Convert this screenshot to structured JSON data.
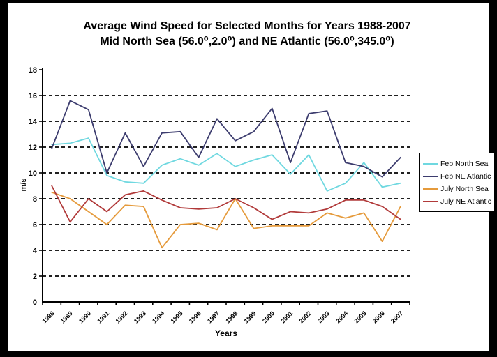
{
  "frame": {
    "border_color": "#000000",
    "page_bg": "#ffffff"
  },
  "title": {
    "line1": "Average Wind Speed for Selected Months for Years 1988-2007",
    "line2": "Mid North Sea (56.0⁰,2.0⁰) and NE Atlantic (56.0⁰,345.0⁰)"
  },
  "axis_labels": {
    "y": "m/s",
    "x": "Years"
  },
  "legend": {
    "position": "right",
    "items": [
      "Feb North Sea",
      "Feb NE Atlantic",
      "July North Sea",
      "July NE Atlantic"
    ]
  },
  "chart_data": {
    "type": "line",
    "title": "Average Wind Speed for Selected Months for Years 1988-2007 Mid North Sea (56.0⁰,2.0⁰) and NE Atlantic (56.0⁰,345.0⁰)",
    "xlabel": "Years",
    "ylabel": "m/s",
    "ylim": [
      0,
      18
    ],
    "y_ticks": [
      0,
      2,
      4,
      6,
      8,
      10,
      12,
      14,
      16,
      18
    ],
    "grid": "horizontal-dashed",
    "legend_position": "right",
    "categories": [
      "1988",
      "1989",
      "1990",
      "1991",
      "1992",
      "1993",
      "1994",
      "1995",
      "1996",
      "1997",
      "1998",
      "1999",
      "2000",
      "2001",
      "2002",
      "2003",
      "2004",
      "2005",
      "2006",
      "2007"
    ],
    "series": [
      {
        "name": "Feb North Sea",
        "color": "#6FD8E0",
        "values": [
          12.2,
          12.3,
          12.7,
          9.8,
          9.3,
          9.2,
          10.6,
          11.1,
          10.6,
          11.5,
          10.5,
          11.0,
          11.4,
          9.9,
          11.4,
          8.6,
          9.2,
          10.8,
          8.9,
          9.2
        ]
      },
      {
        "name": "Feb NE Atlantic",
        "color": "#3C3C6E",
        "values": [
          11.9,
          15.6,
          14.9,
          10.0,
          13.1,
          10.5,
          13.1,
          13.2,
          11.2,
          14.2,
          12.5,
          13.2,
          15.0,
          10.8,
          14.6,
          14.8,
          10.8,
          10.5,
          9.7,
          11.2
        ]
      },
      {
        "name": "July North Sea",
        "color": "#E59A3B",
        "values": [
          8.5,
          8.0,
          7.0,
          6.0,
          7.5,
          7.4,
          4.2,
          6.0,
          6.1,
          5.6,
          8.0,
          5.7,
          5.9,
          5.9,
          5.9,
          6.9,
          6.5,
          6.9,
          4.7,
          7.4
        ]
      },
      {
        "name": "July NE Atlantic",
        "color": "#B13A3A",
        "values": [
          9.0,
          6.2,
          8.0,
          7.0,
          8.3,
          8.6,
          7.9,
          7.3,
          7.2,
          7.3,
          8.0,
          7.3,
          6.4,
          7.0,
          6.9,
          7.2,
          7.9,
          7.9,
          7.4,
          6.4
        ]
      }
    ]
  }
}
